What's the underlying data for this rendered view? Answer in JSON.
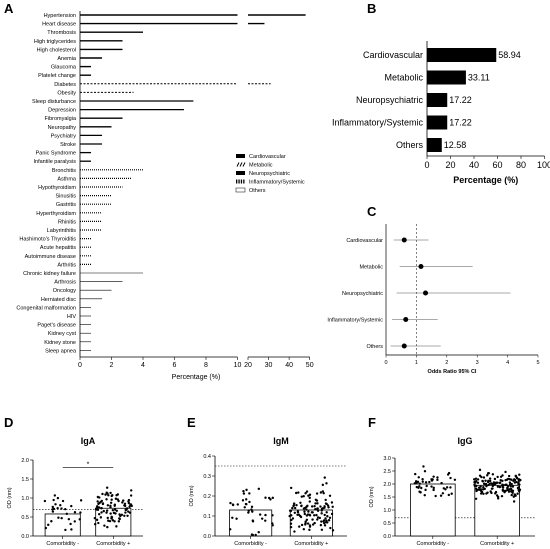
{
  "panels": {
    "A": {
      "letter": "A",
      "xlabel": "Percentage (%)",
      "tick_labels_left": [
        "0",
        "2",
        "4",
        "6",
        "8",
        "10"
      ],
      "tick_labels_right": [
        "20",
        "30",
        "40",
        "50"
      ],
      "legend": [
        {
          "label": "Cardiovascular",
          "style": "solid"
        },
        {
          "label": "Metabolic",
          "style": "dash"
        },
        {
          "label": "Neuropsychiatric",
          "style": "solid"
        },
        {
          "label": "Inflammatory/Systemic",
          "style": "dot"
        },
        {
          "label": "Others",
          "style": "open"
        }
      ]
    },
    "B": {
      "letter": "B",
      "xlabel": "Percentage (%)",
      "ticks": [
        "0",
        "20",
        "40",
        "60",
        "80",
        "100"
      ]
    },
    "C": {
      "letter": "C",
      "xlabel": "Odds Ratio 95% CI",
      "ticks": [
        "0",
        "1",
        "2",
        "3",
        "4",
        "5"
      ]
    },
    "D": {
      "letter": "D",
      "title": "IgA",
      "ylabel": "OD (nm)",
      "ticks": [
        "0.0",
        "0.5",
        "1.0",
        "1.5",
        "2.0"
      ],
      "cats": [
        "Comorbidity -",
        "Comorbidity +"
      ],
      "sig": "*"
    },
    "E": {
      "letter": "E",
      "title": "IgM",
      "ylabel": "OD (nm)",
      "ticks": [
        "0.0",
        "0.1",
        "0.2",
        "0.3",
        "0.4"
      ],
      "cats": [
        "Comorbidity -",
        "Comorbidity +"
      ]
    },
    "F": {
      "letter": "F",
      "title": "IgG",
      "ylabel": "OD (nm)",
      "ticks": [
        "0.0",
        "0.5",
        "1.0",
        "1.5",
        "2.0",
        "2.5",
        "3.0"
      ],
      "cats": [
        "Comorbidity -",
        "Comorbidity +"
      ]
    }
  },
  "chart_data": [
    {
      "type": "bar",
      "title": "",
      "xlabel": "Percentage (%)",
      "orientation": "horizontal",
      "axis_break": [
        10,
        20
      ],
      "xlim": [
        0,
        50
      ],
      "categories": [
        "Hypertension",
        "Heart disease",
        "Thrombosis",
        "High triglycerides",
        "High cholesterol",
        "Anemia",
        "Glaucoma",
        "Platelet change",
        "Diabetes",
        "Obesity",
        "Sleep disturbance",
        "Depression",
        "Fibromyalgia",
        "Neuropathy",
        "Psychiatry",
        "Stroke",
        "Panic Syndrome",
        "Infantile paralysis",
        "Bronchitis",
        "Asthma",
        "Hypothyroidism",
        "Sinusitis",
        "Gastritis",
        "Hyperthyroidism",
        "Rhinitis",
        "Labyrinthitis",
        "Hashimoto's Thyroiditis",
        "Acute hepatitis",
        "Autoimmune disease",
        "Arthritis",
        "Chronic kidney failure",
        "Arthrosis",
        "Oncology",
        "Herniated disc",
        "Congenital malformation",
        "HIV",
        "Paget's disease",
        "Kidney cyst",
        "Kidney stone",
        "Sleep apnea"
      ],
      "groups": [
        "Cardiovascular",
        "Cardiovascular",
        "Cardiovascular",
        "Cardiovascular",
        "Cardiovascular",
        "Cardiovascular",
        "Cardiovascular",
        "Cardiovascular",
        "Metabolic",
        "Metabolic",
        "Neuropsychiatric",
        "Neuropsychiatric",
        "Neuropsychiatric",
        "Neuropsychiatric",
        "Neuropsychiatric",
        "Neuropsychiatric",
        "Neuropsychiatric",
        "Neuropsychiatric",
        "Inflammatory/Systemic",
        "Inflammatory/Systemic",
        "Inflammatory/Systemic",
        "Inflammatory/Systemic",
        "Inflammatory/Systemic",
        "Inflammatory/Systemic",
        "Inflammatory/Systemic",
        "Inflammatory/Systemic",
        "Inflammatory/Systemic",
        "Inflammatory/Systemic",
        "Inflammatory/Systemic",
        "Inflammatory/Systemic",
        "Others",
        "Others",
        "Others",
        "Others",
        "Others",
        "Others",
        "Others",
        "Others",
        "Others",
        "Others"
      ],
      "values": [
        48,
        28,
        4.0,
        2.7,
        2.7,
        1.4,
        0.7,
        0.7,
        31,
        3.4,
        7.2,
        6.6,
        2.7,
        2.0,
        1.4,
        1.4,
        0.7,
        0.7,
        4.0,
        3.3,
        2.7,
        2.0,
        2.0,
        1.4,
        1.4,
        1.4,
        0.7,
        0.7,
        0.7,
        0.7,
        4.0,
        2.7,
        2.0,
        1.4,
        0.7,
        0.7,
        0.7,
        0.7,
        0.7,
        0.7
      ]
    },
    {
      "type": "bar",
      "title": "",
      "xlabel": "Percentage (%)",
      "orientation": "horizontal",
      "xlim": [
        0,
        100
      ],
      "categories": [
        "Cardiovascular",
        "Metabolic",
        "Neuropsychiatric",
        "Inflammatory/Systemic",
        "Others"
      ],
      "values": [
        58.94,
        33.11,
        17.22,
        17.22,
        12.58
      ],
      "value_labels": [
        "58.94",
        "33.11",
        "17.22",
        "17.22",
        "12.58"
      ]
    },
    {
      "type": "scatter",
      "title": "",
      "xlabel": "Odds Ratio 95% CI",
      "xlim": [
        0,
        5
      ],
      "categories": [
        "Cardiovascular",
        "Metabolic",
        "Neuropsychiatric",
        "Inflammatory/Systemic",
        "Others"
      ],
      "estimates": [
        0.6,
        1.15,
        1.3,
        0.65,
        0.6
      ],
      "ci_low": [
        0.25,
        0.45,
        0.35,
        0.2,
        0.15
      ],
      "ci_high": [
        1.4,
        2.85,
        4.1,
        1.7,
        1.8
      ],
      "reference_line": 1
    },
    {
      "type": "bar",
      "title": "IgA",
      "ylabel": "OD (nm)",
      "ylim": [
        0,
        2.0
      ],
      "categories": [
        "Comorbidity -",
        "Comorbidity +"
      ],
      "values": [
        0.58,
        0.73
      ],
      "cutoff": 0.7,
      "significance": "*"
    },
    {
      "type": "bar",
      "title": "IgM",
      "ylabel": "OD (nm)",
      "ylim": [
        0,
        0.4
      ],
      "categories": [
        "Comorbidity -",
        "Comorbidity +"
      ],
      "values": [
        0.13,
        0.13
      ],
      "cutoff": 0.35
    },
    {
      "type": "bar",
      "title": "IgG",
      "ylabel": "OD (nm)",
      "ylim": [
        0,
        3.0
      ],
      "categories": [
        "Comorbidity -",
        "Comorbidity +"
      ],
      "values": [
        2.0,
        1.95
      ],
      "cutoff": 0.7
    }
  ]
}
